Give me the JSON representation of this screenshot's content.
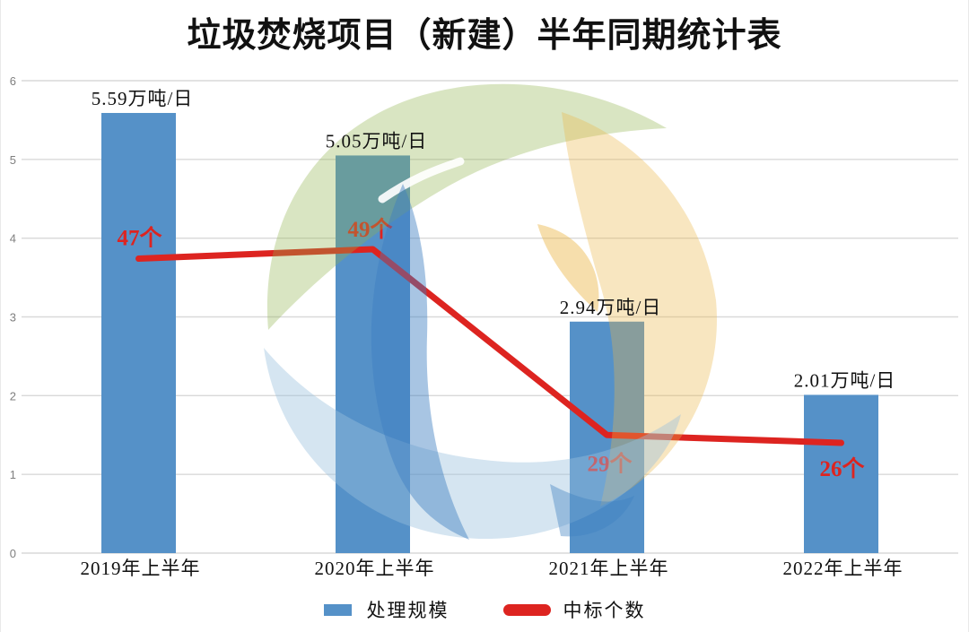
{
  "chart_data": {
    "type": "bar",
    "title": "垃圾焚烧项目（新建）半年同期统计表",
    "categories": [
      "2019年上半年",
      "2020年上半年",
      "2021年上半年",
      "2022年上半年"
    ],
    "series": [
      {
        "name": "处理规模",
        "type": "bar",
        "unit": "万吨/日",
        "values": [
          5.59,
          5.05,
          2.94,
          2.01
        ],
        "labels": [
          "5.59万吨/日",
          "5.05万吨/日",
          "2.94万吨/日",
          "2.01万吨/日"
        ]
      },
      {
        "name": "中标个数",
        "type": "line",
        "unit": "个",
        "values": [
          47,
          49,
          29,
          26
        ],
        "labels": [
          "47个",
          "49个",
          "29个",
          "26个"
        ],
        "positions_on_left_axis": [
          3.74,
          3.86,
          1.5,
          1.4
        ]
      }
    ],
    "y_axis": {
      "min": 0,
      "max": 6,
      "tick_interval": 1,
      "ticks": [
        "0",
        "1",
        "2",
        "3",
        "4",
        "5",
        "6"
      ]
    },
    "grid": true,
    "legend_position": "bottom",
    "colors": {
      "bar": "#5591c8",
      "line": "#dd2420",
      "grid": "#d9d9d9",
      "tick_label": "#7f7f7f",
      "label_text": "#111111",
      "watermark_green": "#8fb44d",
      "watermark_orange": "#eab547",
      "watermark_blue_light": "#9cc0de",
      "watermark_blue_medium": "#3d7fc1"
    }
  }
}
